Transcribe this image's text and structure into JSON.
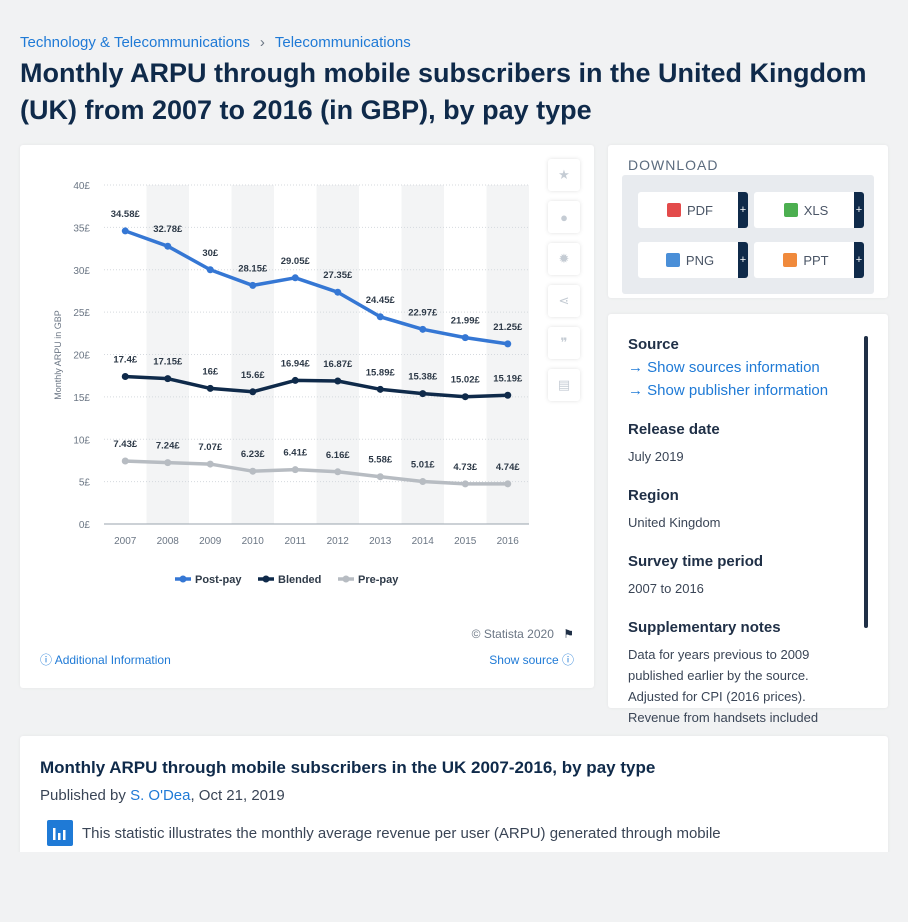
{
  "breadcrumb": {
    "first": "Technology & Telecommunications",
    "sep": "›",
    "second": "Telecommunications"
  },
  "title": "Monthly ARPU through mobile subscribers in the United Kingdom (UK) from 2007 to 2016 (in GBP), by pay type",
  "chart_footer": {
    "copyright": "© Statista 2020",
    "additional_info": "Additional Information",
    "show_source": "Show source"
  },
  "download": {
    "title": "DOWNLOAD",
    "pdf": "PDF",
    "xls": "XLS",
    "png": "PNG",
    "ppt": "PPT",
    "plus": "+"
  },
  "info": {
    "source_label": "Source",
    "sources_link": "Show sources information",
    "publisher_link": "Show publisher information",
    "release_label": "Release date",
    "release_value": "July 2019",
    "region_label": "Region",
    "region_value": "United Kingdom",
    "survey_label": "Survey time period",
    "survey_value": "2007 to 2016",
    "notes_label": "Supplementary notes",
    "notes_value": "Data for years previous to 2009 published earlier by the source. Adjusted for CPI (2016 prices). Revenue from handsets included"
  },
  "description": {
    "title": "Monthly ARPU through mobile subscribers in the UK 2007-2016, by pay type",
    "published_by": "Published by",
    "author": "S. O'Dea",
    "date": ", Oct 21, 2019",
    "text": "This statistic illustrates the monthly average revenue per user (ARPU) generated through mobile"
  },
  "colors": {
    "postpay": "#3577d4",
    "blended": "#0f2a4a",
    "prepay": "#b7bcc2",
    "accent": "#1f7ad6"
  },
  "chart_data": {
    "type": "line",
    "title": "",
    "xlabel": "",
    "ylabel": "Monthly ARPU in GBP",
    "ylim": [
      0,
      40
    ],
    "yticks": [
      "0£",
      "5£",
      "10£",
      "15£",
      "20£",
      "25£",
      "30£",
      "35£",
      "40£"
    ],
    "x": [
      "2007",
      "2008",
      "2009",
      "2010",
      "2011",
      "2012",
      "2013",
      "2014",
      "2015",
      "2016"
    ],
    "legend_position": "bottom",
    "series": [
      {
        "name": "Post-pay",
        "values": [
          34.58,
          32.78,
          30,
          28.15,
          29.05,
          27.35,
          24.45,
          22.97,
          21.99,
          21.25
        ],
        "labels": [
          "34.58£",
          "32.78£",
          "30£",
          "28.15£",
          "29.05£",
          "27.35£",
          "24.45£",
          "22.97£",
          "21.99£",
          "21.25£"
        ]
      },
      {
        "name": "Blended",
        "values": [
          17.4,
          17.15,
          16,
          15.6,
          16.94,
          16.87,
          15.89,
          15.38,
          15.02,
          15.19
        ],
        "labels": [
          "17.4£",
          "17.15£",
          "16£",
          "15.6£",
          "16.94£",
          "16.87£",
          "15.89£",
          "15.38£",
          "15.02£",
          "15.19£"
        ]
      },
      {
        "name": "Pre-pay",
        "values": [
          7.43,
          7.24,
          7.07,
          6.23,
          6.41,
          6.16,
          5.58,
          5.01,
          4.73,
          4.74
        ],
        "labels": [
          "7.43£",
          "7.24£",
          "7.07£",
          "6.23£",
          "6.41£",
          "6.16£",
          "5.58£",
          "5.01£",
          "4.73£",
          "4.74£"
        ]
      }
    ]
  }
}
